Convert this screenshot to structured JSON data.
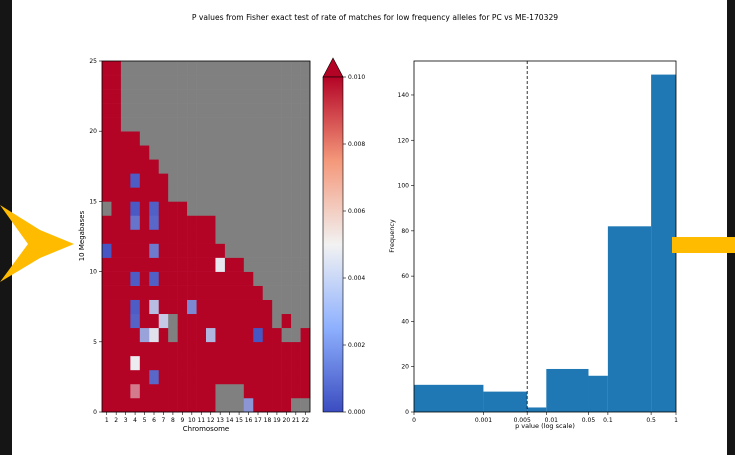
{
  "figure": {
    "title": "P values from Fisher exact test of rate of matches for low frequency alleles for PC vs ME-170329",
    "arrow_color": "#ffbb00"
  },
  "chart_data": [
    {
      "type": "heatmap",
      "xlabel": "Chromosome",
      "ylabel": "10 Megabases",
      "x_ticks": [
        "1",
        "2",
        "3",
        "4",
        "5",
        "6",
        "7",
        "8",
        "9",
        "10",
        "11",
        "12",
        "13",
        "14",
        "15",
        "16",
        "17",
        "18",
        "19",
        "20",
        "21",
        "22"
      ],
      "y_ticks": [
        "0",
        "5",
        "10",
        "15",
        "20",
        "25"
      ],
      "ylim": [
        0,
        25
      ],
      "colorbar": {
        "vmin": 0.0,
        "vmax": 0.01,
        "extend": "max",
        "ticks": [
          "0.000",
          "0.002",
          "0.004",
          "0.006",
          "0.008",
          "0.010"
        ],
        "colormap": [
          "#3b4cc0",
          "#f2f2f2",
          "#b40426"
        ]
      },
      "na_color": "#808080",
      "chromosome_bins": [
        25,
        25,
        20,
        20,
        19,
        18,
        17,
        15,
        15,
        14,
        14,
        14,
        12,
        11,
        11,
        10,
        9,
        8,
        6,
        7,
        5,
        6
      ],
      "default_value": 0.0105,
      "cells": [
        {
          "x": 1,
          "y": 14,
          "v": null
        },
        {
          "x": 1,
          "y": 11,
          "v": 0.0003
        },
        {
          "x": 4,
          "y": 16,
          "v": 0.0005
        },
        {
          "x": 4,
          "y": 14,
          "v": 0.0004
        },
        {
          "x": 4,
          "y": 13,
          "v": 0.0012
        },
        {
          "x": 4,
          "y": 9,
          "v": 0.0005
        },
        {
          "x": 4,
          "y": 7,
          "v": 0.0005
        },
        {
          "x": 4,
          "y": 6,
          "v": 0.0007
        },
        {
          "x": 4,
          "y": 3,
          "v": 0.0048
        },
        {
          "x": 4,
          "y": 1,
          "v": 0.0075
        },
        {
          "x": 5,
          "y": 5,
          "v": 0.0026
        },
        {
          "x": 6,
          "y": 14,
          "v": 0.0006
        },
        {
          "x": 6,
          "y": 13,
          "v": 0.0008
        },
        {
          "x": 6,
          "y": 11,
          "v": 0.0014
        },
        {
          "x": 6,
          "y": 9,
          "v": 0.0006
        },
        {
          "x": 6,
          "y": 7,
          "v": 0.0034
        },
        {
          "x": 6,
          "y": 5,
          "v": 0.0045
        },
        {
          "x": 6,
          "y": 2,
          "v": 0.0008
        },
        {
          "x": 7,
          "y": 6,
          "v": 0.0038
        },
        {
          "x": 8,
          "y": 6,
          "v": null
        },
        {
          "x": 8,
          "y": 5,
          "v": null
        },
        {
          "x": 10,
          "y": 7,
          "v": 0.0018
        },
        {
          "x": 12,
          "y": 5,
          "v": 0.0032
        },
        {
          "x": 13,
          "y": 10,
          "v": 0.0047
        },
        {
          "x": 13,
          "y": 1,
          "v": null
        },
        {
          "x": 13,
          "y": 0,
          "v": null
        },
        {
          "x": 14,
          "y": 1,
          "v": null
        },
        {
          "x": 14,
          "y": 0,
          "v": null
        },
        {
          "x": 15,
          "y": 1,
          "v": null
        },
        {
          "x": 15,
          "y": 0,
          "v": null
        },
        {
          "x": 16,
          "y": 0,
          "v": 0.0022
        },
        {
          "x": 17,
          "y": 5,
          "v": 0.0003
        },
        {
          "x": 20,
          "y": 5,
          "v": null
        },
        {
          "x": 21,
          "y": 0,
          "v": null
        },
        {
          "x": 22,
          "y": 0,
          "v": null
        }
      ]
    },
    {
      "type": "bar",
      "subtype": "histogram",
      "xlabel": "p value (log scale)",
      "ylabel": "Frequency",
      "x_ticks": [
        "0",
        "0.001",
        "0.005",
        "0.01",
        "0.05",
        "0.1",
        "0.5",
        "1"
      ],
      "y_ticks": [
        "0",
        "20",
        "40",
        "60",
        "80",
        "100",
        "120",
        "140"
      ],
      "ylim": [
        0,
        155
      ],
      "bins": [
        {
          "from": "0",
          "to": "0.001",
          "count": 12
        },
        {
          "from": "0.001",
          "to": "0.005",
          "count": 9
        },
        {
          "from": "0.005",
          "to": "0.01",
          "count": 2
        },
        {
          "from": "0.01",
          "to": "0.05",
          "count": 19
        },
        {
          "from": "0.05",
          "to": "0.1",
          "count": 16
        },
        {
          "from": "0.1",
          "to": "0.5",
          "count": 82
        },
        {
          "from": "0.5",
          "to": "1",
          "count": 149
        }
      ],
      "threshold_line": "0.005",
      "bar_color": "#1f77b4"
    }
  ]
}
